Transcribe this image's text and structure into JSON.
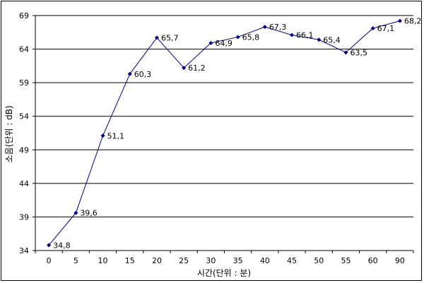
{
  "chart_data": {
    "type": "line",
    "categories": [
      "0",
      "5",
      "10",
      "15",
      "20",
      "25",
      "30",
      "35",
      "40",
      "45",
      "50",
      "55",
      "60",
      "90"
    ],
    "series": [
      {
        "values": [
          34.8,
          39.6,
          51.1,
          60.3,
          65.7,
          61.2,
          64.9,
          65.8,
          67.3,
          66.1,
          65.4,
          63.5,
          67.1,
          68.2
        ],
        "labels": [
          "34,8",
          "39,6",
          "51,1",
          "60,3",
          "65,7",
          "61,2",
          "64,9",
          "65,8",
          "67,3",
          "66,1",
          "65,4",
          "63,5",
          "67,1",
          "68,2"
        ]
      }
    ],
    "xlabel": "시간(단위 : 분)",
    "ylabel": "소음(단위 : dB)",
    "ylim": [
      34,
      69
    ],
    "yticks": [
      34,
      39,
      44,
      49,
      54,
      59,
      64,
      69
    ],
    "grid": true,
    "legend": "none",
    "colors": {
      "line": "#000080",
      "marker": "#000080",
      "grid": "#000000"
    }
  }
}
